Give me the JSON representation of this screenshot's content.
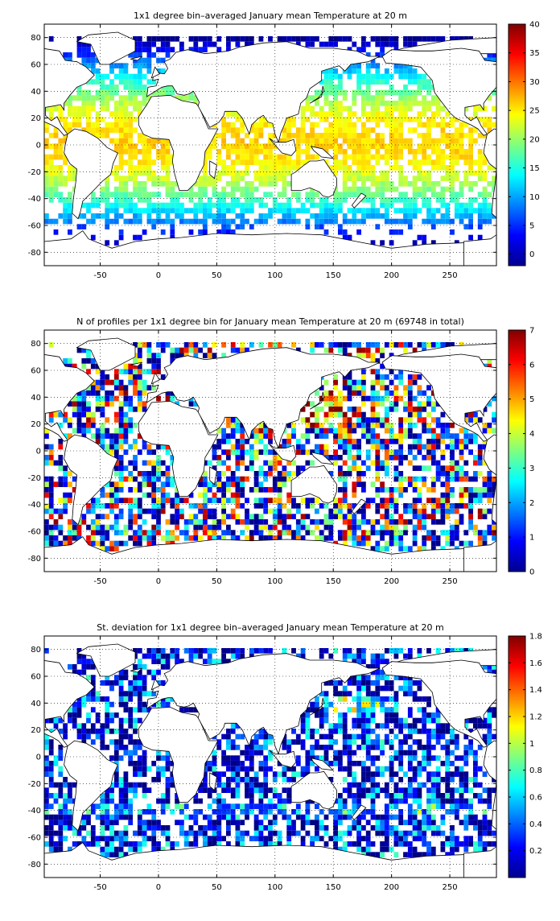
{
  "panels": [
    {
      "id": "temperature",
      "title": "1x1 degree bin–averaged January mean Temperature at 20 m",
      "x_ticks": [
        "-50",
        "0",
        "50",
        "100",
        "150",
        "200",
        "250"
      ],
      "x_tick_values": [
        -50,
        0,
        50,
        100,
        150,
        200,
        250
      ],
      "y_ticks": [
        "80",
        "60",
        "40",
        "20",
        "0",
        "-20",
        "-40",
        "-60",
        "-80"
      ],
      "y_tick_values": [
        80,
        60,
        40,
        20,
        0,
        -20,
        -40,
        -60,
        -80
      ],
      "colorbar_ticks": [
        "40",
        "35",
        "30",
        "25",
        "20",
        "15",
        "10",
        "5",
        "0"
      ],
      "colorbar_tick_values": [
        40,
        35,
        30,
        25,
        20,
        15,
        10,
        5,
        0
      ],
      "colorbar_range": [
        -2,
        40
      ],
      "field": "temperature"
    },
    {
      "id": "count",
      "title": "N of profiles per 1x1 degree bin for January mean Temperature at 20 m (69748 in total)",
      "x_ticks": [
        "-50",
        "0",
        "50",
        "100",
        "150",
        "200",
        "250"
      ],
      "x_tick_values": [
        -50,
        0,
        50,
        100,
        150,
        200,
        250
      ],
      "y_ticks": [
        "80",
        "60",
        "40",
        "20",
        "0",
        "-20",
        "-40",
        "-60",
        "-80"
      ],
      "y_tick_values": [
        80,
        60,
        40,
        20,
        0,
        -20,
        -40,
        -60,
        -80
      ],
      "colorbar_ticks": [
        "7",
        "6",
        "5",
        "4",
        "3",
        "2",
        "1",
        "0"
      ],
      "colorbar_tick_values": [
        7,
        6,
        5,
        4,
        3,
        2,
        1,
        0
      ],
      "colorbar_range": [
        0,
        7
      ],
      "field": "count"
    },
    {
      "id": "stdev",
      "title": "St. deviation for 1x1 degree bin–averaged January mean Temperature at 20 m",
      "x_ticks": [
        "-50",
        "0",
        "50",
        "100",
        "150",
        "200",
        "250"
      ],
      "x_tick_values": [
        -50,
        0,
        50,
        100,
        150,
        200,
        250
      ],
      "y_ticks": [
        "80",
        "60",
        "40",
        "20",
        "0",
        "-20",
        "-40",
        "-60",
        "-80"
      ],
      "y_tick_values": [
        80,
        60,
        40,
        20,
        0,
        -20,
        -40,
        -60,
        -80
      ],
      "colorbar_ticks": [
        "1.8",
        "1.6",
        "1.4",
        "1.2",
        "1",
        "0.8",
        "0.6",
        "0.4",
        "0.2"
      ],
      "colorbar_tick_values": [
        1.8,
        1.6,
        1.4,
        1.2,
        1.0,
        0.8,
        0.6,
        0.4,
        0.2
      ],
      "colorbar_range": [
        0,
        1.8
      ],
      "field": "stdev"
    }
  ],
  "map_extent": {
    "lon": [
      -98,
      290
    ],
    "lat": [
      -90,
      90
    ]
  },
  "grid": "dotted",
  "colormap": "jet"
}
